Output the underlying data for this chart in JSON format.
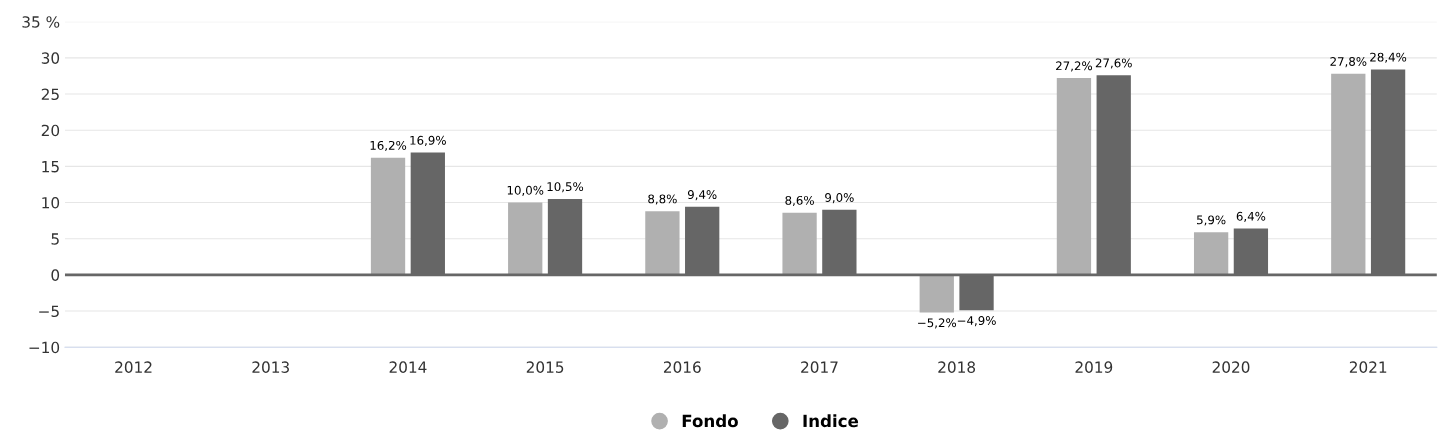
{
  "chart_data": {
    "type": "bar",
    "categories": [
      "2012",
      "2013",
      "2014",
      "2015",
      "2016",
      "2017",
      "2018",
      "2019",
      "2020",
      "2021"
    ],
    "series": [
      {
        "name": "Fondo",
        "color": "#b0b0b0",
        "values": [
          null,
          null,
          16.2,
          10.0,
          8.8,
          8.6,
          -5.2,
          27.2,
          5.9,
          27.8
        ],
        "value_labels": [
          null,
          null,
          "16,2%",
          "10,0%",
          "8,8%",
          "8,6%",
          "−5,2%",
          "27,2%",
          "5,9%",
          "27,8%"
        ]
      },
      {
        "name": "Indice",
        "color": "#666666",
        "values": [
          null,
          null,
          16.9,
          10.5,
          9.4,
          9.0,
          -4.9,
          27.6,
          6.4,
          28.4
        ],
        "value_labels": [
          null,
          null,
          "16,9%",
          "10,5%",
          "9,4%",
          "9,0%",
          "−4,9%",
          "27,6%",
          "6,4%",
          "28,4%"
        ]
      }
    ],
    "ylim": [
      -10,
      35
    ],
    "yticks": [
      {
        "value": -10,
        "label": "−10"
      },
      {
        "value": -5,
        "label": "−5"
      },
      0,
      5,
      10,
      15,
      20,
      25,
      30,
      {
        "value": 35,
        "label": "35 %"
      }
    ],
    "ref_lines": [
      {
        "axis": "y",
        "value": 0,
        "color": "#666666"
      }
    ],
    "grid": "y",
    "legend": "bottom"
  }
}
